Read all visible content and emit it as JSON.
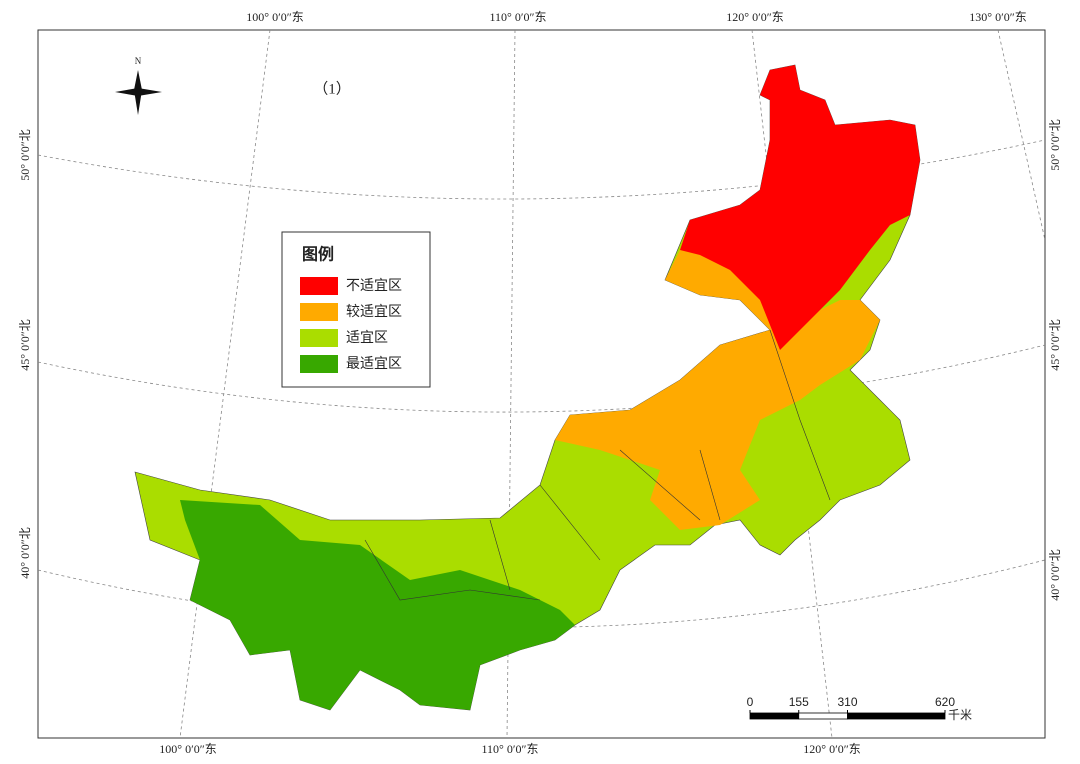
{
  "panel_label": "（1）",
  "north": "N",
  "legend": {
    "title": "图例",
    "items": [
      {
        "label": "不适宜区",
        "color": "#ff0000"
      },
      {
        "label": "较适宜区",
        "color": "#ffaa00"
      },
      {
        "label": "适宜区",
        "color": "#aadd00"
      },
      {
        "label": "最适宜区",
        "color": "#38a800"
      }
    ]
  },
  "graticule": {
    "top": [
      "100° 0′0″东",
      "110° 0′0″东",
      "120° 0′0″东",
      "130° 0′0″东"
    ],
    "bottom": [
      "100° 0′0″东",
      "110° 0′0″东",
      "120° 0′0″东"
    ],
    "left": [
      "50° 0′0″北",
      "45° 0′0″北",
      "40° 0′0″北"
    ],
    "right": [
      "50° 0′0″北",
      "45° 0′0″北",
      "40° 0′0″北"
    ]
  },
  "scale_bar": {
    "ticks": [
      0,
      155,
      310,
      620
    ],
    "unit": "千米"
  }
}
